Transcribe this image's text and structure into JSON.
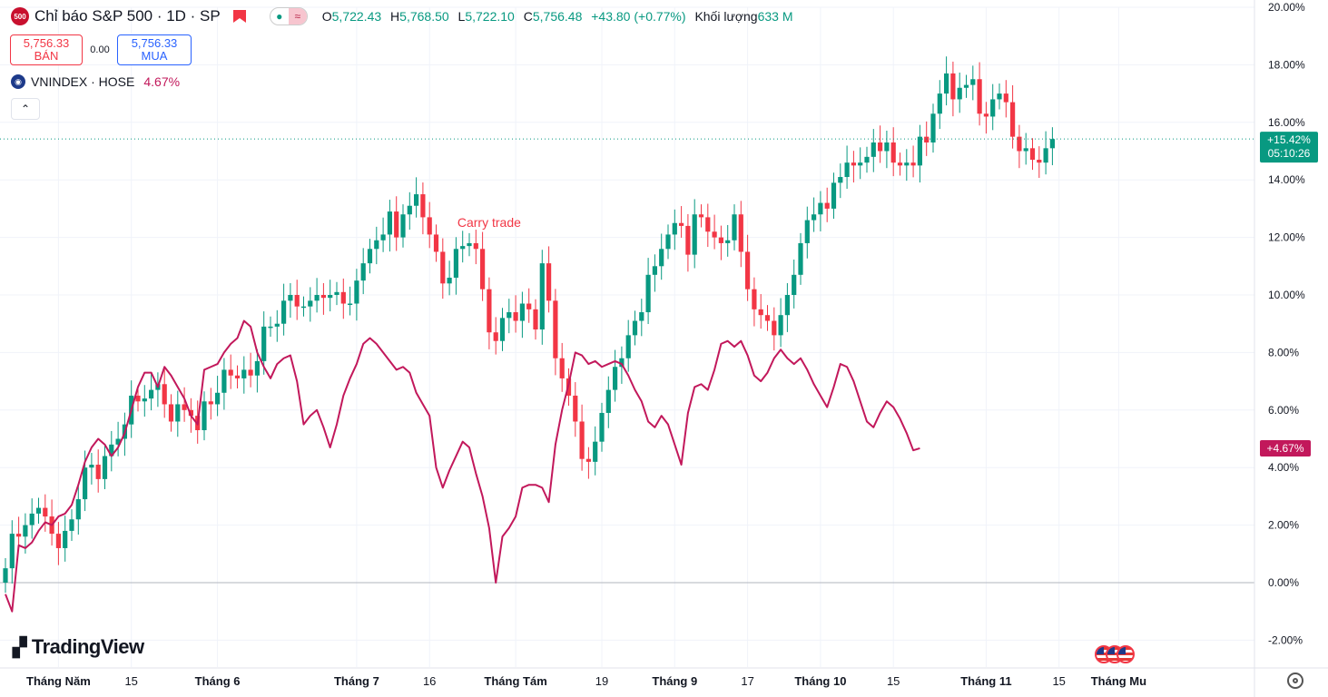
{
  "header": {
    "logo_text": "500",
    "title": "Chỉ báo S&P 500 · 1D · SP",
    "ohlc": {
      "o_label": "O",
      "o": "5,722.43",
      "h_label": "H",
      "h": "5,768.50",
      "l_label": "L",
      "l": "5,722.10",
      "c_label": "C",
      "c": "5,756.48",
      "change": "+43.80 (+0.77%)",
      "vol_label": "Khối lượng",
      "vol": "633 M"
    }
  },
  "trade": {
    "sell_price": "5,756.33",
    "sell_label": "BÁN",
    "spread": "0.00",
    "buy_price": "5,756.33",
    "buy_label": "MUA"
  },
  "compare": {
    "symbol": "VNINDEX · HOSE",
    "value": "4.67%"
  },
  "brand": "TradingView",
  "colors": {
    "up": "#089981",
    "down": "#f23645",
    "compare_line": "#c2185b",
    "current_line": "#089981"
  },
  "icons": [
    "logo-500-icon",
    "flag-icon",
    "eye-dot-icon",
    "wave-icon",
    "vnindex-icon",
    "chevron-up-icon",
    "tradingview-logo-icon",
    "us-flag-icon",
    "settings-icon"
  ],
  "chart_data": {
    "type": "candlestick",
    "y_unit": "%",
    "ylim": [
      -2.8,
      20.2
    ],
    "y_ticks": [
      "20.00%",
      "18.00%",
      "16.00%",
      "14.00%",
      "12.00%",
      "10.00%",
      "8.00%",
      "6.00%",
      "4.00%",
      "2.00%",
      "0.00%",
      "-2.00%"
    ],
    "y_tick_values": [
      20,
      18,
      16,
      14,
      12,
      10,
      8,
      6,
      4,
      2,
      0,
      -2
    ],
    "x_ticks": [
      {
        "label": "Tháng Năm",
        "i": 8
      },
      {
        "label": "15",
        "i": 19
      },
      {
        "label": "Tháng 6",
        "i": 32
      },
      {
        "label": "Tháng 7",
        "i": 53
      },
      {
        "label": "16",
        "i": 64
      },
      {
        "label": "Tháng Tám",
        "i": 77
      },
      {
        "label": "19",
        "i": 90
      },
      {
        "label": "Tháng 9",
        "i": 101
      },
      {
        "label": "17",
        "i": 112
      },
      {
        "label": "Tháng 10",
        "i": 123
      },
      {
        "label": "15",
        "i": 134
      },
      {
        "label": "Tháng 11",
        "i": 148
      },
      {
        "label": "15",
        "i": 159
      },
      {
        "label": "Tháng Mu",
        "i": 168
      }
    ],
    "annotation": {
      "text": "Carry trade",
      "i": 73,
      "y": 12.5
    },
    "current_label": {
      "value": "+15.42%",
      "time": "05:10:26",
      "y": 15.42
    },
    "compare_label": {
      "value": "+4.67%",
      "y": 4.67
    },
    "candles": [
      [
        0,
        0.5
      ],
      [
        0.5,
        1.7
      ],
      [
        1.7,
        1.6
      ],
      [
        1.6,
        2.0
      ],
      [
        2.0,
        2.4
      ],
      [
        2.4,
        2.6
      ],
      [
        2.6,
        2.3
      ],
      [
        2.3,
        1.7
      ],
      [
        1.7,
        1.2
      ],
      [
        1.2,
        1.8
      ],
      [
        1.8,
        2.2
      ],
      [
        2.2,
        2.9
      ],
      [
        2.9,
        4.0
      ],
      [
        4.0,
        4.1
      ],
      [
        4.1,
        3.6
      ],
      [
        3.6,
        4.4
      ],
      [
        4.4,
        4.8
      ],
      [
        4.8,
        5.0
      ],
      [
        5.0,
        5.5
      ],
      [
        5.5,
        6.5
      ],
      [
        6.5,
        6.3
      ],
      [
        6.3,
        6.4
      ],
      [
        6.4,
        6.7
      ],
      [
        6.7,
        6.9
      ],
      [
        6.9,
        6.2
      ],
      [
        6.2,
        5.6
      ],
      [
        5.6,
        6.2
      ],
      [
        6.2,
        6.0
      ],
      [
        6.0,
        5.8
      ],
      [
        5.8,
        5.3
      ],
      [
        5.3,
        6.3
      ],
      [
        6.3,
        6.2
      ],
      [
        6.2,
        6.6
      ],
      [
        6.6,
        7.4
      ],
      [
        7.4,
        7.2
      ],
      [
        7.2,
        7.1
      ],
      [
        7.1,
        7.4
      ],
      [
        7.4,
        7.2
      ],
      [
        7.2,
        7.7
      ],
      [
        7.7,
        8.9
      ],
      [
        8.9,
        8.9
      ],
      [
        8.9,
        9.0
      ],
      [
        9.0,
        9.8
      ],
      [
        9.8,
        10.0
      ],
      [
        10.0,
        9.6
      ],
      [
        9.6,
        9.6
      ],
      [
        9.6,
        9.8
      ],
      [
        9.8,
        10.0
      ],
      [
        10.0,
        9.9
      ],
      [
        9.9,
        10.0
      ],
      [
        10.0,
        10.1
      ],
      [
        10.1,
        9.7
      ],
      [
        9.7,
        9.7
      ],
      [
        9.7,
        10.5
      ],
      [
        10.5,
        11.1
      ],
      [
        11.1,
        11.6
      ],
      [
        11.6,
        11.9
      ],
      [
        11.9,
        12.1
      ],
      [
        12.1,
        12.9
      ],
      [
        12.9,
        12.0
      ],
      [
        12.0,
        12.8
      ],
      [
        12.8,
        13.1
      ],
      [
        13.1,
        13.5
      ],
      [
        13.5,
        12.7
      ],
      [
        12.7,
        12.1
      ],
      [
        12.1,
        11.5
      ],
      [
        11.5,
        10.4
      ],
      [
        10.4,
        10.6
      ],
      [
        10.6,
        11.6
      ],
      [
        11.6,
        11.7
      ],
      [
        11.7,
        11.8
      ],
      [
        11.8,
        11.6
      ],
      [
        11.6,
        10.2
      ],
      [
        10.2,
        8.7
      ],
      [
        8.7,
        8.4
      ],
      [
        8.4,
        9.2
      ],
      [
        9.2,
        9.4
      ],
      [
        9.4,
        9.1
      ],
      [
        9.1,
        9.7
      ],
      [
        9.7,
        9.5
      ],
      [
        9.5,
        8.8
      ],
      [
        8.8,
        11.1
      ],
      [
        11.1,
        9.8
      ],
      [
        9.8,
        7.8
      ],
      [
        7.8,
        7.1
      ],
      [
        7.1,
        6.5
      ],
      [
        6.5,
        5.6
      ],
      [
        5.6,
        4.3
      ],
      [
        4.3,
        4.2
      ],
      [
        4.2,
        4.9
      ],
      [
        4.9,
        5.9
      ],
      [
        5.9,
        6.7
      ],
      [
        6.7,
        7.5
      ],
      [
        7.5,
        7.8
      ],
      [
        7.8,
        8.6
      ],
      [
        8.6,
        9.1
      ],
      [
        9.1,
        9.4
      ],
      [
        9.4,
        10.7
      ],
      [
        10.7,
        11.0
      ],
      [
        11.0,
        11.6
      ],
      [
        11.6,
        12.1
      ],
      [
        12.1,
        12.5
      ],
      [
        12.5,
        12.4
      ],
      [
        12.4,
        11.4
      ],
      [
        11.4,
        12.8
      ],
      [
        12.8,
        12.7
      ],
      [
        12.7,
        12.2
      ],
      [
        12.2,
        12.0
      ],
      [
        12.0,
        11.8
      ],
      [
        11.8,
        11.9
      ],
      [
        11.9,
        12.8
      ],
      [
        12.8,
        11.5
      ],
      [
        11.5,
        10.2
      ],
      [
        10.2,
        9.5
      ],
      [
        9.5,
        9.3
      ],
      [
        9.3,
        9.1
      ],
      [
        9.1,
        8.6
      ],
      [
        8.6,
        9.3
      ],
      [
        9.3,
        10.0
      ],
      [
        10.0,
        10.7
      ],
      [
        10.7,
        11.8
      ],
      [
        11.8,
        12.6
      ],
      [
        12.6,
        12.8
      ],
      [
        12.8,
        13.2
      ],
      [
        13.2,
        13.0
      ],
      [
        13.0,
        13.9
      ],
      [
        13.9,
        14.1
      ],
      [
        14.1,
        14.6
      ],
      [
        14.6,
        14.5
      ],
      [
        14.5,
        14.6
      ],
      [
        14.6,
        14.8
      ],
      [
        14.8,
        15.3
      ],
      [
        15.3,
        15.0
      ],
      [
        15.0,
        15.3
      ],
      [
        15.3,
        14.6
      ],
      [
        14.6,
        14.5
      ],
      [
        14.5,
        14.6
      ],
      [
        14.6,
        14.5
      ],
      [
        14.5,
        15.5
      ],
      [
        15.5,
        15.3
      ],
      [
        15.3,
        16.3
      ],
      [
        16.3,
        17.0
      ],
      [
        17.0,
        17.7
      ],
      [
        17.7,
        16.8
      ],
      [
        16.8,
        17.2
      ],
      [
        17.2,
        17.3
      ],
      [
        17.3,
        17.5
      ],
      [
        17.5,
        16.3
      ],
      [
        16.3,
        16.2
      ],
      [
        16.2,
        16.8
      ],
      [
        16.8,
        17.0
      ],
      [
        17.0,
        16.7
      ],
      [
        16.7,
        15.5
      ],
      [
        15.5,
        15.0
      ],
      [
        15.0,
        15.1
      ],
      [
        15.1,
        14.7
      ],
      [
        14.7,
        14.6
      ],
      [
        14.6,
        15.1
      ],
      [
        15.1,
        15.42
      ]
    ],
    "compare_series": [
      -0.4,
      -1.0,
      1.3,
      1.2,
      1.4,
      1.8,
      2.1,
      2.0,
      2.3,
      2.4,
      2.7,
      3.4,
      4.2,
      4.7,
      5.0,
      4.8,
      4.4,
      4.7,
      5.2,
      6.0,
      6.8,
      7.3,
      7.3,
      6.8,
      7.5,
      7.2,
      6.8,
      6.4,
      5.8,
      5.5,
      7.4,
      7.5,
      7.6,
      8.0,
      8.3,
      8.5,
      9.1,
      8.9,
      8.0,
      7.5,
      7.1,
      7.6,
      7.8,
      7.9,
      7.0,
      5.5,
      5.8,
      6.0,
      5.4,
      4.7,
      5.5,
      6.5,
      7.1,
      7.6,
      8.3,
      8.5,
      8.3,
      8.0,
      7.7,
      7.4,
      7.5,
      7.3,
      6.6,
      6.2,
      5.8,
      4.0,
      3.3,
      3.9,
      4.4,
      4.9,
      4.7,
      3.8,
      3.0,
      1.9,
      0.0,
      1.6,
      1.9,
      2.3,
      3.3,
      3.4,
      3.4,
      3.3,
      2.8,
      4.8,
      6.0,
      6.9,
      8.0,
      7.9,
      7.6,
      7.7,
      7.5,
      7.6,
      7.7,
      7.6,
      7.2,
      6.7,
      6.3,
      5.6,
      5.4,
      5.8,
      5.5,
      4.8,
      4.1,
      5.9,
      6.8,
      6.9,
      6.7,
      7.4,
      8.3,
      8.4,
      8.2,
      8.4,
      7.9,
      7.2,
      7.0,
      7.3,
      7.8,
      8.1,
      7.8,
      7.6,
      7.8,
      7.4,
      6.9,
      6.5,
      6.1,
      6.8,
      7.6,
      7.5,
      7.0,
      6.3,
      5.6,
      5.4,
      5.9,
      6.3,
      6.1,
      5.7,
      5.2,
      4.6,
      4.67
    ]
  }
}
